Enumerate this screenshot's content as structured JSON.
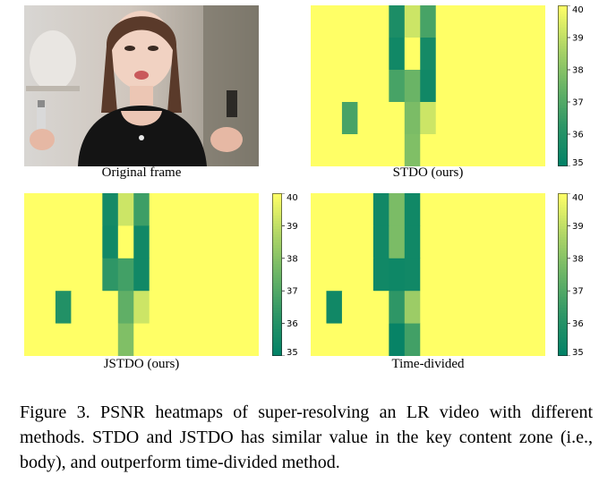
{
  "figure": {
    "caption": "Figure 3.  PSNR heatmaps of super-resolving an LR video with different methods. STDO and JSTDO has similar value in the key content zone (i.e., body), and outperform time-divided method."
  },
  "panels": [
    {
      "label": "Original frame",
      "image": "photo of a woman holding a serum bottle"
    },
    {
      "label": "STDO (ours)"
    },
    {
      "label": "JSTDO (ours)"
    },
    {
      "label": "Time-divided"
    }
  ],
  "chart_data": [
    {
      "type": "heatmap",
      "title": "STDO (ours)",
      "colorbar": {
        "min": 35,
        "max": 40,
        "ticks": [
          35,
          36,
          37,
          38,
          39,
          40
        ]
      },
      "grid": [
        [
          40,
          40,
          40,
          40,
          40,
          35.8,
          39.2,
          36.8,
          40,
          40,
          40,
          40,
          40,
          40,
          40
        ],
        [
          40,
          40,
          40,
          40,
          40,
          35.5,
          40,
          35.6,
          40,
          40,
          40,
          40,
          40,
          40,
          40
        ],
        [
          40,
          40,
          40,
          40,
          40,
          36.8,
          37.5,
          35.5,
          40,
          40,
          40,
          40,
          40,
          40,
          40
        ],
        [
          40,
          40,
          36.8,
          40,
          40,
          40,
          37.8,
          39.2,
          40,
          40,
          40,
          40,
          40,
          40,
          40
        ],
        [
          40,
          40,
          40,
          40,
          40,
          40,
          37.9,
          40,
          40,
          40,
          40,
          40,
          40,
          40,
          40
        ]
      ]
    },
    {
      "type": "heatmap",
      "title": "JSTDO (ours)",
      "colorbar": {
        "min": 35,
        "max": 40,
        "ticks": [
          35,
          36,
          37,
          38,
          39,
          40
        ]
      },
      "grid": [
        [
          40,
          40,
          40,
          40,
          40,
          35.6,
          39.2,
          36.6,
          40,
          40,
          40,
          40,
          40,
          40,
          40
        ],
        [
          40,
          40,
          40,
          40,
          40,
          35.5,
          40,
          35.5,
          40,
          40,
          40,
          40,
          40,
          40,
          40
        ],
        [
          40,
          40,
          40,
          40,
          40,
          36.3,
          36.7,
          35.5,
          40,
          40,
          40,
          40,
          40,
          40,
          40
        ],
        [
          40,
          40,
          36.0,
          40,
          40,
          40,
          37.3,
          39.2,
          40,
          40,
          40,
          40,
          40,
          40,
          40
        ],
        [
          40,
          40,
          40,
          40,
          40,
          40,
          37.9,
          40,
          40,
          40,
          40,
          40,
          40,
          40,
          40
        ]
      ]
    },
    {
      "type": "heatmap",
      "title": "Time-divided",
      "colorbar": {
        "min": 35,
        "max": 40,
        "ticks": [
          35,
          36,
          37,
          38,
          39,
          40
        ]
      },
      "grid": [
        [
          40,
          40,
          40,
          40,
          35.5,
          37.8,
          35.5,
          40,
          40,
          40,
          40,
          40,
          40,
          40,
          40
        ],
        [
          40,
          40,
          40,
          40,
          35.5,
          37.8,
          35.5,
          40,
          40,
          40,
          40,
          40,
          40,
          40,
          40
        ],
        [
          40,
          40,
          40,
          40,
          35.5,
          35.4,
          35.5,
          40,
          40,
          40,
          40,
          40,
          40,
          40,
          40
        ],
        [
          40,
          35.5,
          40,
          40,
          40,
          36.3,
          38.4,
          40,
          40,
          40,
          40,
          40,
          40,
          40,
          40
        ],
        [
          40,
          40,
          40,
          40,
          40,
          35.2,
          36.7,
          40,
          40,
          40,
          40,
          40,
          40,
          40,
          40
        ]
      ]
    }
  ]
}
